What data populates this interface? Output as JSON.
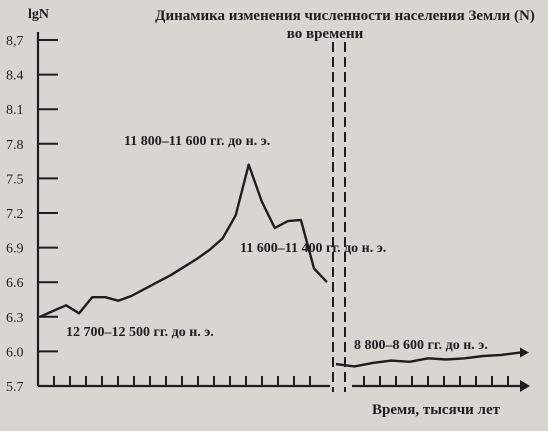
{
  "chart_data": {
    "type": "line",
    "title": "Динамика изменения численности населения Земли (N)",
    "subtitle": "во времени",
    "ylabel": "lgN",
    "xlabel": "Время, тысячи лет",
    "yticks": [
      "8,7",
      "8.4",
      "8.1",
      "7.8",
      "7.5",
      "7.2",
      "6.9",
      "6.6",
      "6.3",
      "6.0",
      "5.7"
    ],
    "ylim": [
      5.7,
      8.7
    ],
    "grid": false,
    "break": true,
    "series": [
      {
        "segment": "before-break",
        "x": [
          0,
          1,
          2,
          3,
          4,
          5,
          6,
          7,
          8,
          9,
          10,
          11,
          12,
          13,
          14,
          15,
          16,
          17,
          18,
          19,
          20,
          21,
          22
        ],
        "values": [
          6.3,
          6.35,
          6.4,
          6.33,
          6.47,
          6.47,
          6.44,
          6.48,
          6.54,
          6.6,
          6.66,
          6.73,
          6.8,
          6.88,
          6.98,
          7.18,
          7.62,
          7.3,
          7.07,
          7.13,
          7.14,
          6.72,
          6.6
        ]
      },
      {
        "segment": "after-break",
        "x": [
          0,
          1,
          2,
          3,
          4,
          5,
          6,
          7,
          8,
          9,
          10
        ],
        "values": [
          5.89,
          5.87,
          5.9,
          5.92,
          5.91,
          5.94,
          5.93,
          5.94,
          5.96,
          5.97,
          5.99
        ]
      }
    ],
    "annotations": [
      "11 800–11 600 гг. до н. э.",
      "11 600–11 400 гг. до н. э.",
      "12 700–12 500 гг. до н. э.",
      "8 800–8 600 гг. до н. э."
    ]
  }
}
